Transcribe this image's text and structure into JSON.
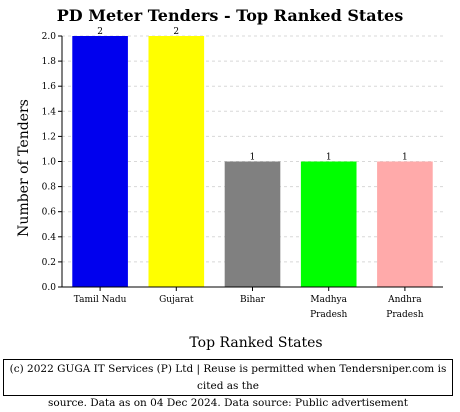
{
  "chart_data": {
    "type": "bar",
    "title": "PD Meter Tenders - Top Ranked States",
    "xlabel": "Top Ranked States",
    "ylabel": "Number of Tenders",
    "categories": [
      [
        "Tamil Nadu"
      ],
      [
        "Gujarat"
      ],
      [
        "Bihar"
      ],
      [
        "Madhya",
        "Pradesh"
      ],
      [
        "Andhra",
        "Pradesh"
      ]
    ],
    "values": [
      2,
      2,
      1,
      1,
      1
    ],
    "data_labels": [
      "2",
      "2",
      "1",
      "1",
      "1"
    ],
    "bar_colors": [
      "#0000ee",
      "#ffff00",
      "#808080",
      "#00ff00",
      "#ffaaaa"
    ],
    "ylim": [
      0,
      2.0
    ],
    "yticks": [
      "0.0",
      "0.2",
      "0.4",
      "0.6",
      "0.8",
      "1.0",
      "1.2",
      "1.4",
      "1.6",
      "1.8",
      "2.0"
    ],
    "grid": true
  },
  "footer": {
    "line1": "(c) 2022 GUGA IT Services (P) Ltd | Reuse is permitted when Tendersniper.com is cited as the",
    "line2": "source. Data as on 04 Dec 2024. Data source: Public advertisement"
  }
}
